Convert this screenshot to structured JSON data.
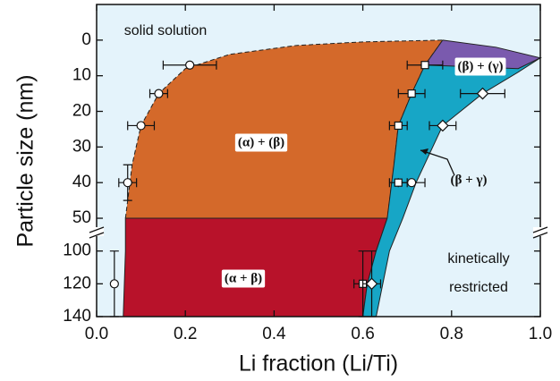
{
  "chart_data": {
    "type": "phase-diagram",
    "xlabel": "Li fraction (Li/Ti)",
    "ylabel": "Particle size (nm)",
    "xlim": [
      0,
      1
    ],
    "xticks": [
      {
        "value": 0,
        "label": "0.0"
      },
      {
        "value": 0.2,
        "label": "0.2"
      },
      {
        "value": 0.4,
        "label": "0.4"
      },
      {
        "value": 0.6,
        "label": "0.6"
      },
      {
        "value": 0.8,
        "label": "0.8"
      },
      {
        "value": 1,
        "label": "1.0"
      }
    ],
    "ylim": [
      -10,
      140
    ],
    "y_break": [
      52,
      92
    ],
    "y_inverted": true,
    "yticks": [
      0,
      10,
      20,
      30,
      40,
      50,
      100,
      120,
      140
    ],
    "background": "#e4f3fb",
    "regions": [
      {
        "label": "(α) + (β)",
        "color": "#d4692a",
        "x": [
          0.065,
          0.08,
          0.1,
          0.14,
          0.2,
          0.3,
          0.45,
          0.6,
          0.78,
          0.74,
          0.71,
          0.68,
          0.67,
          0.655
        ],
        "y": [
          50,
          35,
          24,
          15,
          8,
          4,
          1.5,
          0.5,
          0,
          7,
          15,
          24,
          35,
          50
        ]
      },
      {
        "label": "(α + β)",
        "color": "#b8122a",
        "x": [
          0.065,
          0.065,
          0.06,
          0.6,
          0.61,
          0.63,
          0.655
        ],
        "y": [
          50,
          100,
          140,
          140,
          120,
          100,
          50
        ]
      },
      {
        "label": "(β + γ)",
        "color": "#17a6c6",
        "x": [
          0.74,
          1.0,
          0.95,
          0.87,
          0.78,
          0.72,
          0.69,
          0.66,
          0.63,
          0.6,
          0.61,
          0.63,
          0.655,
          0.67,
          0.68,
          0.71
        ],
        "y": [
          7,
          5,
          9,
          15,
          24,
          40,
          50,
          100,
          140,
          140,
          120,
          100,
          50,
          35,
          24,
          15
        ]
      },
      {
        "label": "(β) + (γ)",
        "color": "#7a5aae",
        "x": [
          0.78,
          0.9,
          1.0,
          0.95,
          0.74
        ],
        "y": [
          0,
          2,
          5,
          8,
          7
        ]
      }
    ],
    "annotations": [
      "solid solution",
      "kinetically",
      "restricted"
    ],
    "markers": [
      {
        "shape": "circle",
        "x": [
          0.21,
          0.14,
          0.1,
          0.07,
          0.71,
          0.04
        ],
        "y": [
          7,
          15,
          24,
          40,
          40,
          120
        ],
        "xerr": [
          0.06,
          0.02,
          0.03,
          0.02,
          0.03,
          null
        ],
        "yerr": [
          null,
          null,
          null,
          5,
          null,
          20
        ]
      },
      {
        "shape": "square",
        "x": [
          0.74,
          0.71,
          0.68,
          0.68,
          0.6
        ],
        "y": [
          7,
          15,
          24,
          40,
          120
        ],
        "xerr": [
          0.04,
          0.03,
          0.02,
          0.02,
          0.02
        ],
        "yerr": [
          null,
          null,
          null,
          null,
          20
        ]
      },
      {
        "shape": "diamond",
        "x": [
          0.87,
          0.78,
          0.62
        ],
        "y": [
          15,
          24,
          120
        ],
        "xerr": [
          0.05,
          0.03,
          0.02
        ],
        "yerr": [
          null,
          null,
          20
        ]
      }
    ]
  }
}
